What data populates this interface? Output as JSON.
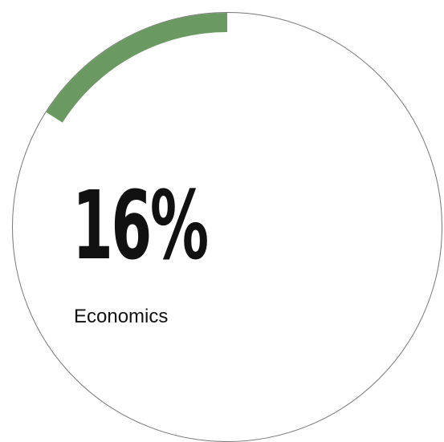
{
  "chart_data": {
    "type": "donut",
    "value": 16,
    "value_label": "16%",
    "category_label": "Economics",
    "total": 100
  },
  "colors": {
    "arc": "#6a9a61",
    "ring": "#777777",
    "text": "#111111",
    "background": "#ffffff"
  }
}
